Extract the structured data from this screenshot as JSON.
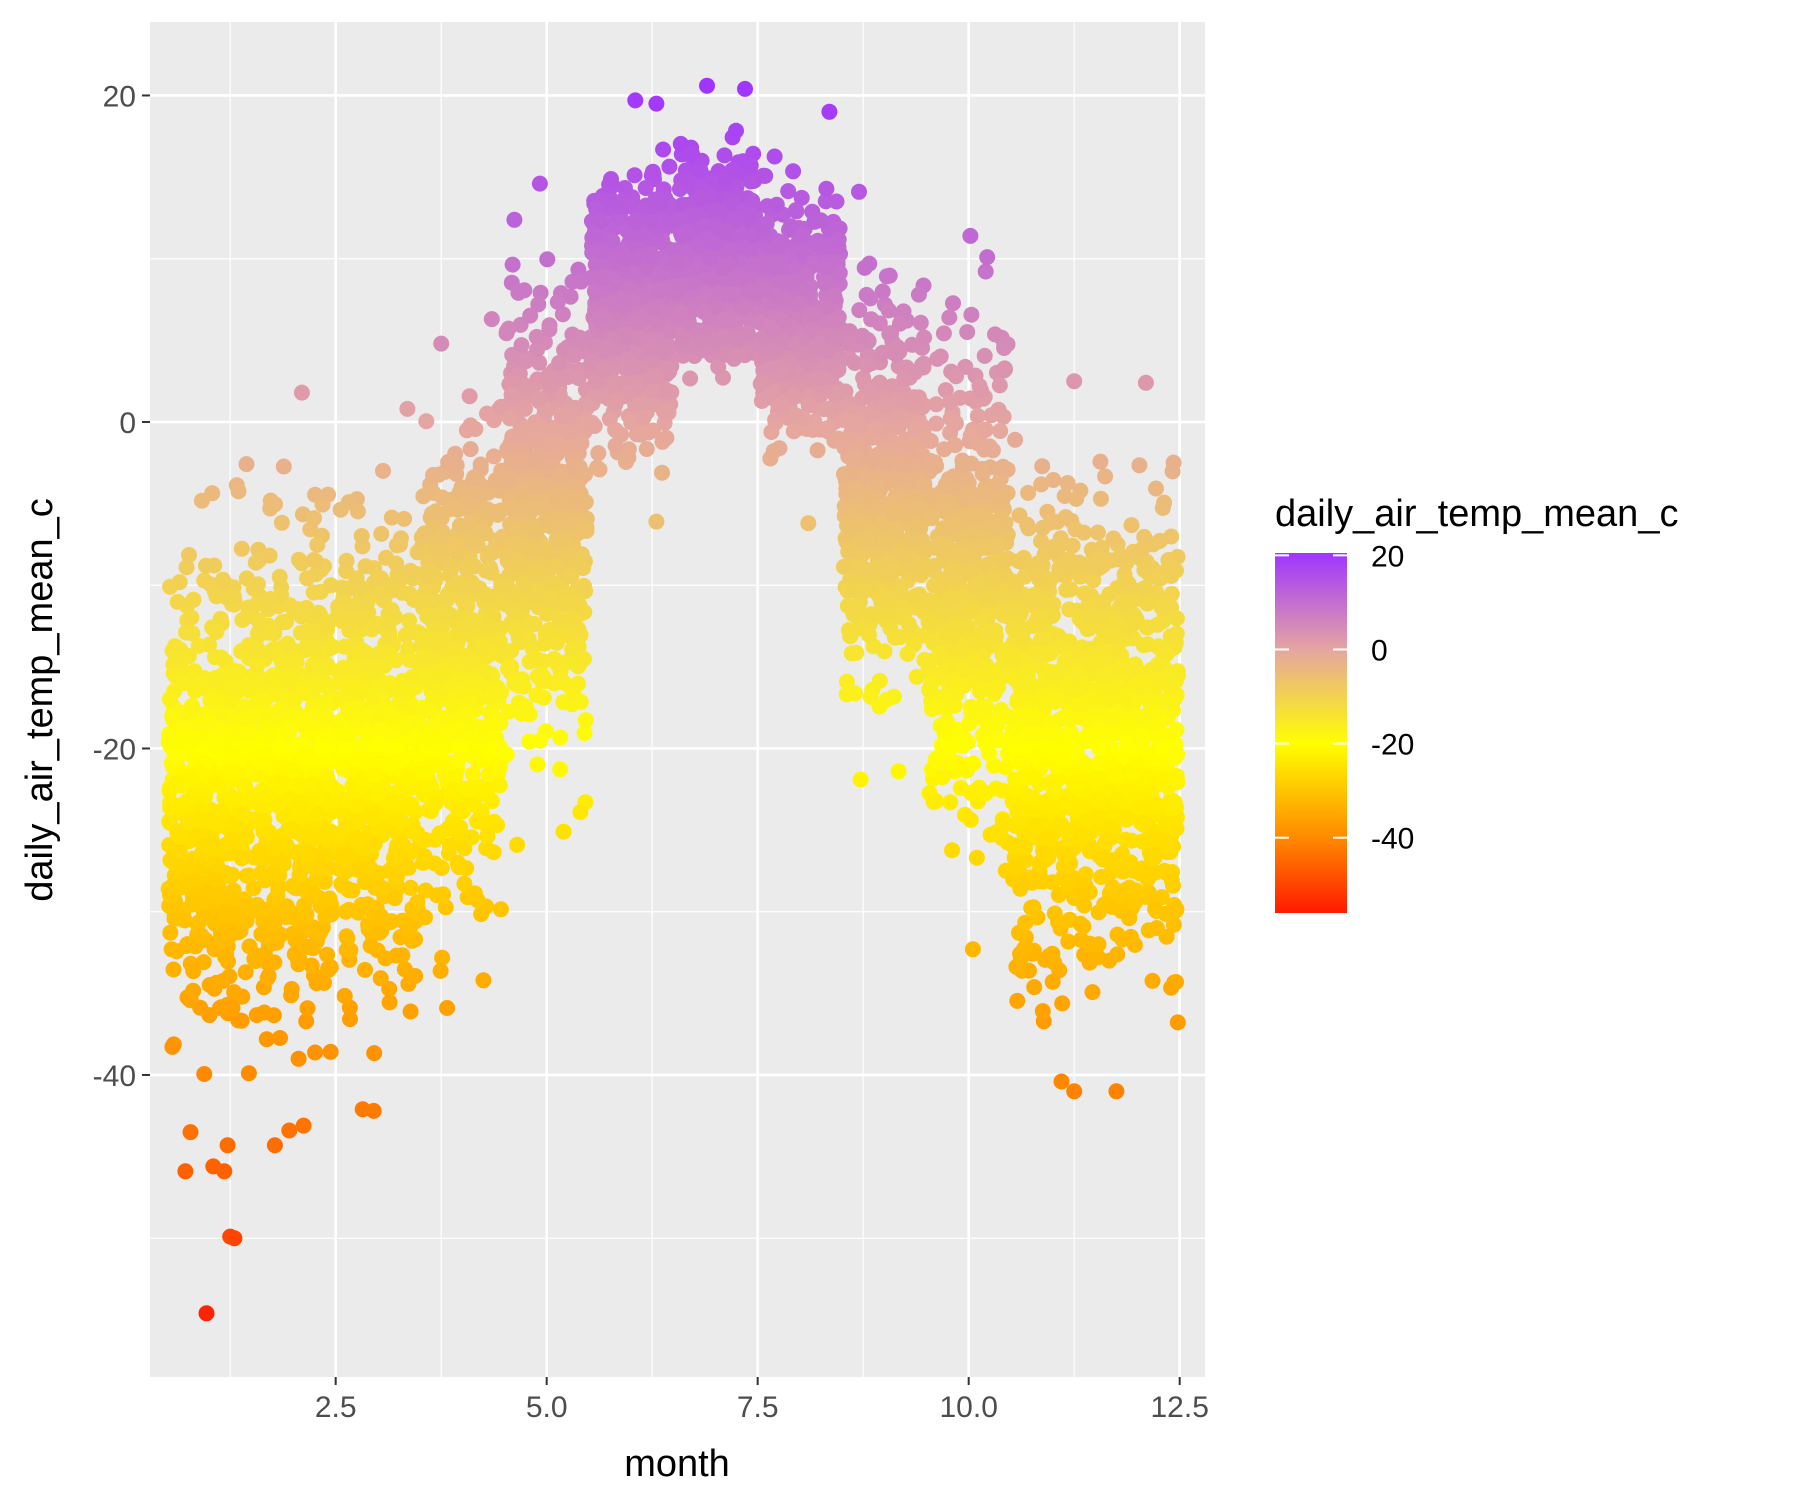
{
  "chart_data": {
    "type": "scatter",
    "xlabel": "month",
    "ylabel": "daily_air_temp_mean_c",
    "xlim": [
      0.3,
      12.8
    ],
    "ylim": [
      -58.5,
      24.5
    ],
    "x_ticks": [
      2.5,
      5.0,
      7.5,
      10.0,
      12.5
    ],
    "x_tick_labels": [
      "2.5",
      "5.0",
      "7.5",
      "10.0",
      "12.5"
    ],
    "y_ticks": [
      -40,
      -20,
      0,
      20
    ],
    "y_tick_labels": [
      "-40",
      "-20",
      "0",
      "20"
    ],
    "grid": true,
    "background": "#ebebeb",
    "x_jitter": 0.48,
    "color_scale": {
      "title": "daily_air_temp_mean_c",
      "limits": [
        -56,
        20.5
      ],
      "stops": [
        {
          "value": -56,
          "color": "#ff1a00"
        },
        {
          "value": -40,
          "color": "#ff8a00"
        },
        {
          "value": -20,
          "color": "#ffff00"
        },
        {
          "value": 0,
          "color": "#e5a5a1"
        },
        {
          "value": 20.5,
          "color": "#a035ff"
        }
      ],
      "breaks": [
        20,
        0,
        -20,
        -40
      ],
      "break_labels": [
        "20",
        "0",
        "-20",
        "-40"
      ],
      "legend_position": "right"
    },
    "months": [
      {
        "month": 1,
        "min": -46,
        "max": 1.5,
        "outliers": [
          [
            0.97,
            -54.6
          ],
          [
            1.25,
            -49.9
          ],
          [
            1.3,
            -50.0
          ],
          [
            0.72,
            -45.9
          ],
          [
            1.18,
            -45.9
          ],
          [
            1.05,
            -45.6
          ],
          [
            0.78,
            -43.5
          ],
          [
            1.22,
            -44.3
          ]
        ]
      },
      {
        "month": 2,
        "min": -44,
        "max": 2.0,
        "outliers": [
          [
            1.78,
            -44.3
          ],
          [
            1.95,
            -43.4
          ],
          [
            2.12,
            -43.1
          ],
          [
            2.1,
            1.8
          ]
        ]
      },
      {
        "month": 3,
        "min": -42.2,
        "max": 1.0,
        "outliers": [
          [
            2.82,
            -42.1
          ],
          [
            2.95,
            -42.2
          ],
          [
            3.35,
            0.8
          ]
        ]
      },
      {
        "month": 4,
        "min": -36,
        "max": 6.5,
        "outliers": [
          [
            3.82,
            -35.9
          ],
          [
            4.25,
            -34.2
          ],
          [
            3.75,
            4.8
          ],
          [
            4.35,
            6.3
          ]
        ]
      },
      {
        "month": 5,
        "min": -26,
        "max": 14.5,
        "outliers": [
          [
            4.65,
            -25.9
          ],
          [
            5.2,
            -25.1
          ],
          [
            5.4,
            -23.9
          ],
          [
            4.92,
            14.6
          ]
        ]
      },
      {
        "month": 6,
        "min": -6,
        "max": 19.8,
        "outliers": [
          [
            6.3,
            -6.1
          ],
          [
            6.05,
            19.7
          ],
          [
            6.3,
            19.5
          ]
        ]
      },
      {
        "month": 7,
        "min": -0.6,
        "max": 20.6,
        "outliers": [
          [
            6.9,
            20.6
          ],
          [
            7.35,
            20.4
          ]
        ]
      },
      {
        "month": 8,
        "min": -6.1,
        "max": 19.0,
        "outliers": [
          [
            8.1,
            -6.2
          ],
          [
            8.35,
            19.0
          ]
        ]
      },
      {
        "month": 9,
        "min": -22,
        "max": 14.0,
        "outliers": [
          [
            8.72,
            -21.9
          ],
          [
            9.17,
            -21.4
          ],
          [
            8.7,
            14.1
          ]
        ]
      },
      {
        "month": 10,
        "min": -32,
        "max": 11.3,
        "outliers": [
          [
            10.05,
            -32.3
          ],
          [
            10.02,
            11.4
          ],
          [
            10.22,
            10.1
          ]
        ]
      },
      {
        "month": 11,
        "min": -41,
        "max": 2.5,
        "outliers": [
          [
            11.25,
            -41.0
          ],
          [
            11.1,
            -40.4
          ],
          [
            11.25,
            2.5
          ]
        ]
      },
      {
        "month": 12,
        "min": -41,
        "max": 2.4,
        "outliers": [
          [
            11.75,
            -41.0
          ],
          [
            12.1,
            2.4
          ]
        ]
      }
    ]
  }
}
